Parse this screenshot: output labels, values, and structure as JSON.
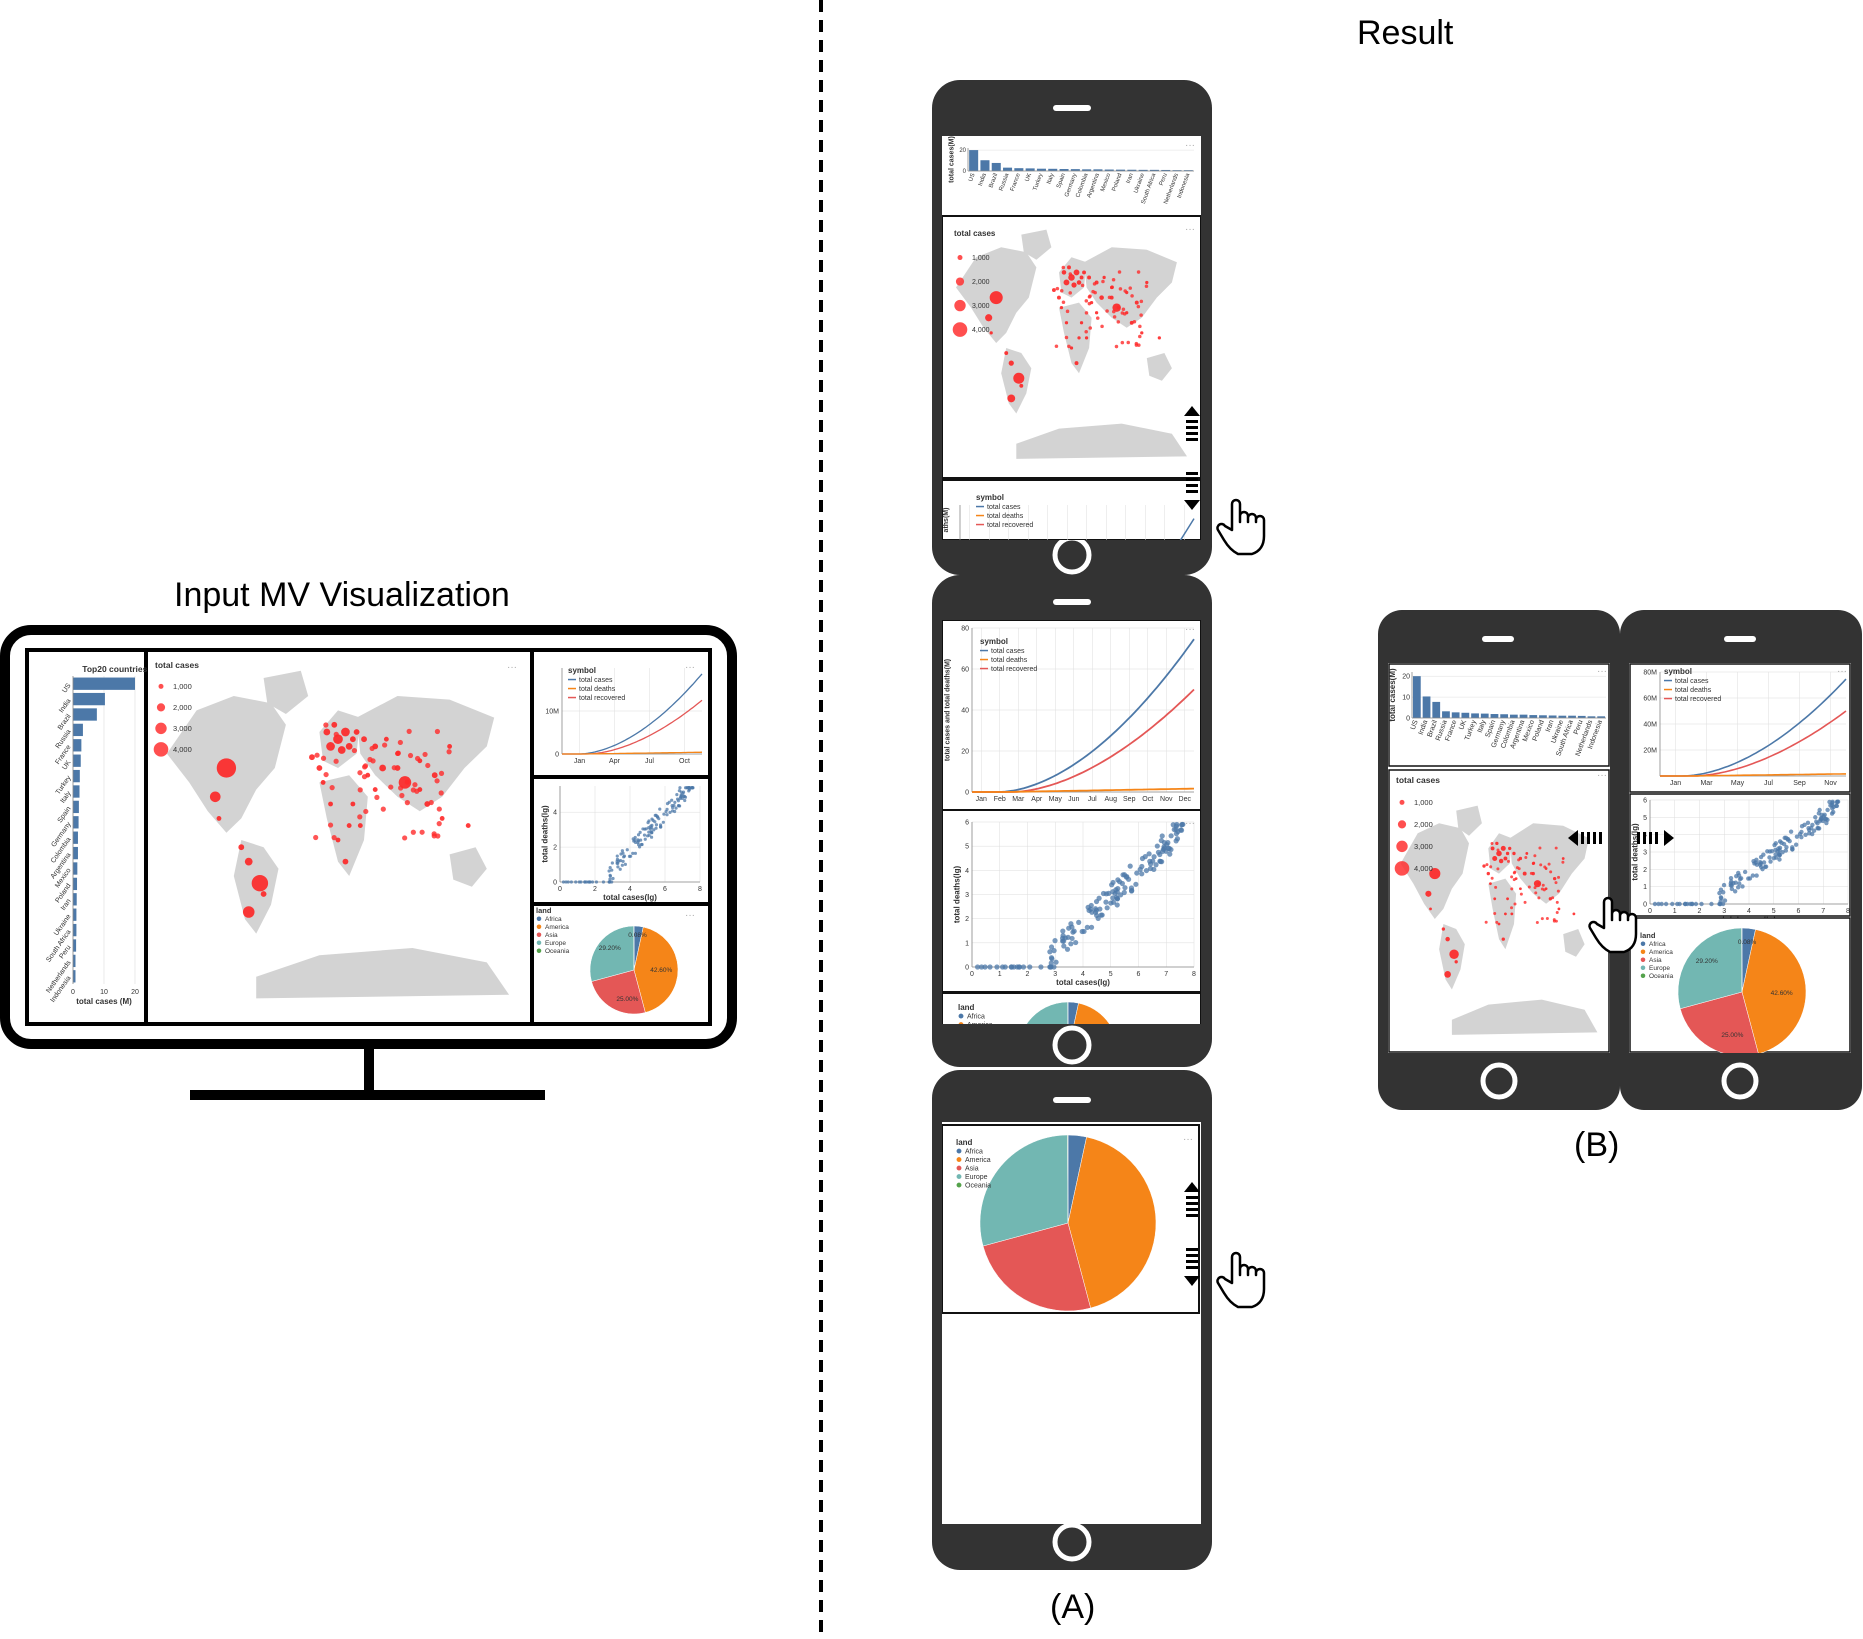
{
  "headings": {
    "input": "Input MV Visualization",
    "result": "Result",
    "caption_a": "(A)",
    "caption_b": "(B)"
  },
  "bar_chart": {
    "title": "Top20 countries",
    "xlabel": "total cases (M)",
    "ylabel": "total cases(M)",
    "categories": [
      "US",
      "India",
      "Brazil",
      "Russia",
      "France",
      "UK",
      "Turkey",
      "Italy",
      "Spain",
      "Germany",
      "Colombia",
      "Argentina",
      "Mexico",
      "Poland",
      "Iran",
      "Ukraine",
      "South Africa",
      "Peru",
      "Netherlands",
      "Indonesia"
    ],
    "values": [
      20.0,
      10.3,
      7.7,
      3.2,
      2.7,
      2.5,
      2.2,
      2.1,
      1.9,
      1.8,
      1.6,
      1.6,
      1.4,
      1.3,
      1.2,
      1.1,
      1.1,
      1.0,
      0.8,
      0.8
    ],
    "x_ticks": [
      "0",
      "10",
      "20"
    ],
    "xlim": [
      0,
      20
    ]
  },
  "map_legend": {
    "title": "total cases",
    "entries": [
      "1,000",
      "2,000",
      "3,000",
      "4,000"
    ]
  },
  "line_chart": {
    "legend_title": "symbol",
    "series": [
      {
        "name": "total cases",
        "color": "#4c78a8"
      },
      {
        "name": "total deaths",
        "color": "#f58518"
      },
      {
        "name": "total recovered",
        "color": "#e45756"
      }
    ],
    "ylabel": "total cases and total deaths(M)",
    "x_ticks_input": [
      "Jan",
      "Apr",
      "Jul",
      "Oct"
    ],
    "y_ticks_input": [
      "0",
      "10M"
    ],
    "x_ticks_phone": [
      "Jan",
      "Feb",
      "Mar",
      "Apr",
      "May",
      "Jun",
      "Jul",
      "Aug",
      "Sep",
      "Oct",
      "Nov",
      "Dec"
    ],
    "y_ticks_phone": [
      "0",
      "20",
      "40",
      "60",
      "80"
    ],
    "x_ticks_b": [
      "Jan",
      "Mar",
      "May",
      "Jul",
      "Sep",
      "Nov"
    ],
    "y_ticks_b": [
      "20M",
      "40M",
      "60M",
      "80M"
    ],
    "y_ticks_strip": [
      "80"
    ],
    "ylabel_strip": "aths(M)"
  },
  "scatter": {
    "xlabel": "total cases(lg)",
    "ylabel": "total deaths(lg)",
    "x_ticks": [
      "0",
      "1",
      "2",
      "3",
      "4",
      "5",
      "6",
      "7",
      "8"
    ],
    "y_ticks": [
      "0",
      "1",
      "2",
      "3",
      "4",
      "5",
      "6"
    ],
    "x_ticks_input": [
      "0",
      "2",
      "4",
      "6",
      "8"
    ],
    "y_ticks_input": [
      "0",
      "2",
      "4"
    ]
  },
  "pie": {
    "legend_title": "land",
    "slices": [
      {
        "name": "Africa",
        "color": "#4c78a8",
        "value": 3.4
      },
      {
        "name": "America",
        "color": "#f58518",
        "value": 42.6
      },
      {
        "name": "Asia",
        "color": "#e45756",
        "value": 25.0
      },
      {
        "name": "Europe",
        "color": "#72b7b2",
        "value": 29.2
      },
      {
        "name": "Oceania",
        "color": "#54a24b",
        "value": 0.1
      }
    ],
    "labels": [
      "0.08%",
      "42.60%",
      "25.00%",
      "29.20%"
    ]
  },
  "more_glyph": "···"
}
